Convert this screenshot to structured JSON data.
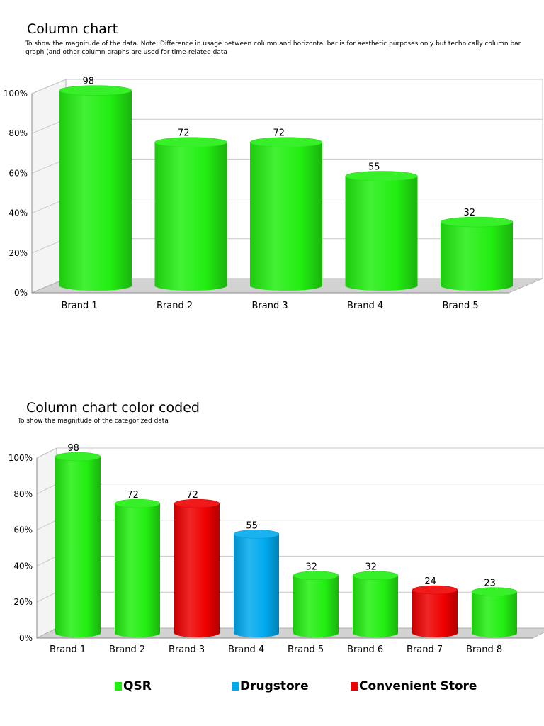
{
  "colors": {
    "QSR": "#22ee11",
    "Drugstore": "#00aaee",
    "Convenient Store": "#ee0000"
  },
  "chart1": {
    "title": "Column chart",
    "subtitle": "To show the magnitude of the data. Note: Difference in usage between column and horizontal bar is for aesthetic purposes only but technically column bar graph (and other column graphs are used for time-related data"
  },
  "chart2": {
    "title": "Column chart color coded",
    "subtitle": "To show the magnitude of the categorized data"
  },
  "legend": [
    {
      "label": "QSR",
      "color": "#22ee11"
    },
    {
      "label": "Drugstore",
      "color": "#00aaee"
    },
    {
      "label": "Convenient Store",
      "color": "#ee0000"
    }
  ],
  "chart_data": [
    {
      "type": "bar",
      "title": "Column chart",
      "categories": [
        "Brand 1",
        "Brand 2",
        "Brand 3",
        "Brand 4",
        "Brand 5"
      ],
      "values": [
        98,
        72,
        72,
        55,
        32
      ],
      "data_labels": [
        "98",
        "72",
        "72",
        "55",
        "32"
      ],
      "bar_colors": [
        "#22ee11",
        "#22ee11",
        "#22ee11",
        "#22ee11",
        "#22ee11"
      ],
      "y_ticks": [
        "0%",
        "20%",
        "40%",
        "60%",
        "80%",
        "100%"
      ],
      "ylim": [
        0,
        100
      ],
      "grid": true,
      "style": "3d-cylinder"
    },
    {
      "type": "bar",
      "title": "Column chart color coded",
      "categories": [
        "Brand 1",
        "Brand 2",
        "Brand 3",
        "Brand 4",
        "Brand 5",
        "Brand 6",
        "Brand 7",
        "Brand 8"
      ],
      "values": [
        98,
        72,
        72,
        55,
        32,
        32,
        24,
        23
      ],
      "data_labels": [
        "98",
        "72",
        "72",
        "55",
        "32",
        "32",
        "24",
        "23"
      ],
      "groups": [
        "QSR",
        "QSR",
        "Convenient Store",
        "Drugstore",
        "QSR",
        "QSR",
        "Convenient Store",
        "QSR"
      ],
      "bar_colors": [
        "#22ee11",
        "#22ee11",
        "#ee0000",
        "#00aaee",
        "#22ee11",
        "#22ee11",
        "#ee0000",
        "#22ee11"
      ],
      "y_ticks": [
        "0%",
        "20%",
        "40%",
        "60%",
        "80%",
        "100%"
      ],
      "ylim": [
        0,
        100
      ],
      "grid": true,
      "legend_position": "bottom",
      "style": "3d-cylinder"
    }
  ]
}
